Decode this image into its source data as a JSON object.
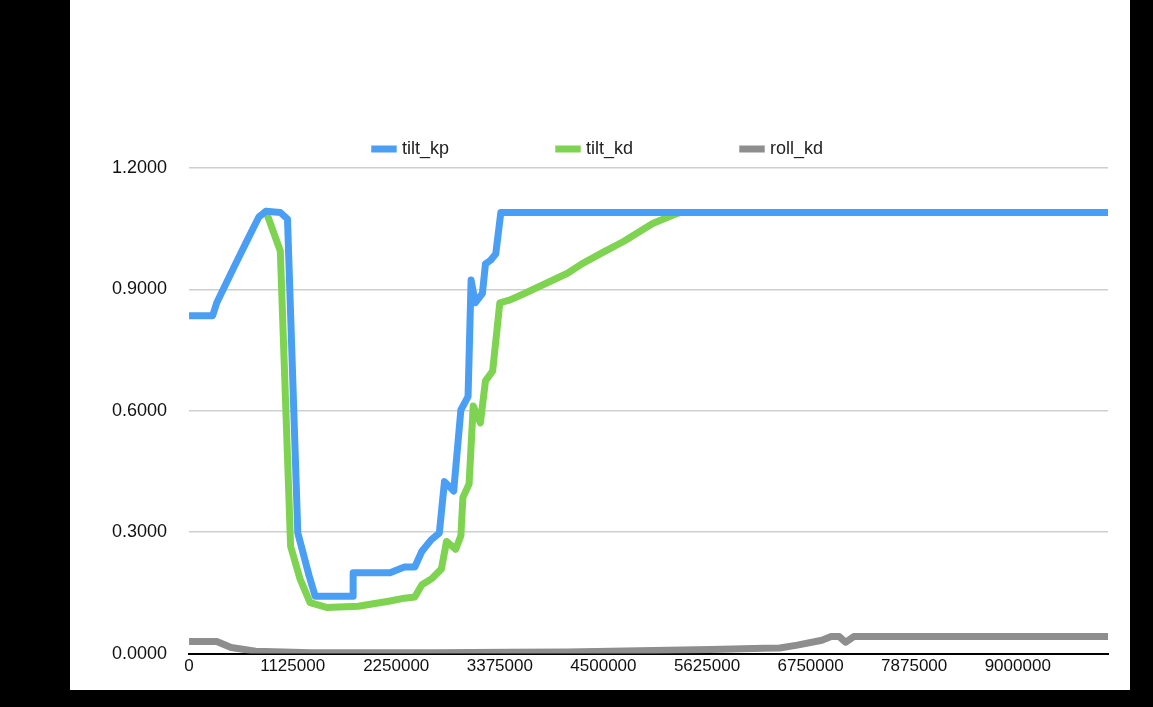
{
  "chart_data": {
    "type": "line",
    "xlim": [
      0,
      9980000
    ],
    "xticks": [
      0,
      1125000,
      2250000,
      3375000,
      4500000,
      5625000,
      6750000,
      7875000,
      9000000
    ],
    "ylim": [
      0,
      1.2
    ],
    "yticks": [
      {
        "value": 0,
        "label": "0.0000"
      },
      {
        "value": 0.3,
        "label": "0.3000"
      },
      {
        "value": 0.6,
        "label": "0.6000"
      },
      {
        "value": 0.9,
        "label": "0.9000"
      },
      {
        "value": 1.2,
        "label": "1.2000"
      }
    ],
    "grid": "y",
    "legend": "top",
    "marker": "none",
    "line_style": "solid",
    "series": [
      {
        "name": "tilt_kp",
        "color": "#4a9ff5",
        "x": [
          0,
          256000,
          300800,
          490000,
          646000,
          758000,
          835000,
          991000,
          1069000,
          1181000,
          1303000,
          1370000,
          1782000,
          1782000,
          2183000,
          2339000,
          2451000,
          2529000,
          2629000,
          2718000,
          2774000,
          2874000,
          2952000,
          3030000,
          3063000,
          3108000,
          3186000,
          3219000,
          3275000,
          3331000,
          3386000,
          9980000
        ],
        "values": [
          0.835,
          0.835,
          0.867,
          0.956,
          1.028,
          1.079,
          1.093,
          1.09,
          1.074,
          0.298,
          0.193,
          0.142,
          0.142,
          0.2,
          0.2,
          0.214,
          0.214,
          0.253,
          0.281,
          0.298,
          0.425,
          0.402,
          0.602,
          0.635,
          0.923,
          0.867,
          0.89,
          0.963,
          0.972,
          0.988,
          1.09,
          1.09
        ]
      },
      {
        "name": "tilt_kd",
        "color": "#7ed350",
        "x": [
          835000,
          991000,
          1103000,
          1203000,
          1314000,
          1493000,
          1838000,
          2183000,
          2339000,
          2451000,
          2529000,
          2640000,
          2740000,
          2796000,
          2896000,
          2952000,
          2974000,
          3041000,
          3086000,
          3164000,
          3219000,
          3297000,
          3375000,
          3487000,
          3642000,
          4110000,
          4266000,
          4489000,
          4723000,
          5035000,
          5258000,
          5336000
        ],
        "values": [
          1.093,
          0.995,
          0.265,
          0.186,
          0.126,
          0.114,
          0.117,
          0.13,
          0.137,
          0.14,
          0.17,
          0.186,
          0.209,
          0.277,
          0.258,
          0.291,
          0.386,
          0.419,
          0.612,
          0.57,
          0.674,
          0.698,
          0.867,
          0.874,
          0.89,
          0.94,
          0.963,
          0.991,
          1.019,
          1.063,
          1.084,
          1.09
        ]
      },
      {
        "name": "roll_kd",
        "color": "#8e8e8e",
        "x": [
          0,
          301000,
          457000,
          724000,
          1326000,
          2662000,
          4110000,
          5670000,
          6416000,
          6606000,
          6873000,
          6973000,
          7062000,
          7129000,
          7218000,
          9980000
        ],
        "values": [
          0.03,
          0.03,
          0.015,
          0.006,
          0.002,
          0.002,
          0.004,
          0.01,
          0.014,
          0.021,
          0.033,
          0.042,
          0.042,
          0.028,
          0.042,
          0.042
        ]
      }
    ]
  }
}
